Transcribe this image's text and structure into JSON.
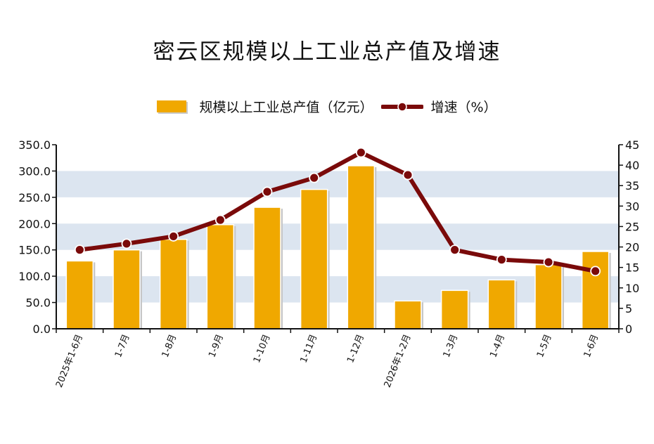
{
  "title": "密云区规模以上工业总产值及增速",
  "legend": {
    "bar_label": "规模以上工业总产值（亿元）",
    "line_label": "增速（%）"
  },
  "colors": {
    "bar": "#F0A800",
    "line": "#7A0A0A",
    "band": "#DCE5F0",
    "axis": "#111111"
  },
  "chart_data": {
    "type": "bar+line",
    "categories": [
      "2025年1-6月",
      "1-7月",
      "1-8月",
      "1-9月",
      "1-10月",
      "1-11月",
      "1-12月",
      "2026年1-2月",
      "1-3月",
      "1-4月",
      "1-5月",
      "1-6月"
    ],
    "series": [
      {
        "name": "规模以上工业总产值（亿元）",
        "type": "bar",
        "axis": "left",
        "values": [
          129,
          150,
          170,
          198,
          231,
          265,
          310,
          53,
          73,
          93,
          122,
          147
        ]
      },
      {
        "name": "增速（%）",
        "type": "line",
        "axis": "right",
        "values": [
          19.3,
          20.8,
          22.6,
          26.6,
          33.5,
          36.9,
          43.1,
          37.6,
          19.3,
          16.9,
          16.3,
          14.1
        ]
      }
    ],
    "y_left": {
      "min": 0,
      "max": 350,
      "step": 50,
      "tick_labels": [
        "0.0",
        "50.0",
        "100.0",
        "150.0",
        "200.0",
        "250.0",
        "300.0",
        "350.0"
      ]
    },
    "y_right": {
      "min": 0,
      "max": 45,
      "step": 5,
      "tick_labels": [
        "0",
        "5",
        "10",
        "15",
        "20",
        "25",
        "30",
        "35",
        "40",
        "45"
      ]
    },
    "legend_position": "top-center",
    "grid": "alternating horizontal bands"
  }
}
